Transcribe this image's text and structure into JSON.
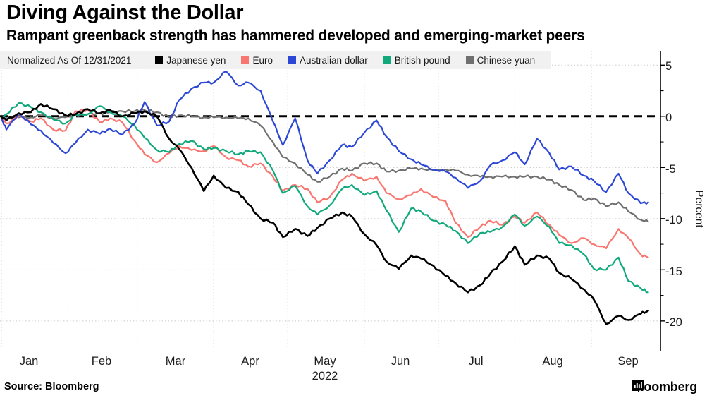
{
  "header": {
    "title": "Diving Against the Dollar",
    "subtitle": "Rampant greenback strength has hammered developed and emerging-market peers"
  },
  "legend": {
    "prefix": "Normalized As Of 12/31/2021",
    "background": "#f1f1f1",
    "items": [
      {
        "label": "Japanese yen",
        "color": "#000000"
      },
      {
        "label": "Euro",
        "color": "#f9756f"
      },
      {
        "label": "Australian dollar",
        "color": "#2c47d5"
      },
      {
        "label": "British pound",
        "color": "#10a97c"
      },
      {
        "label": "Chinese yuan",
        "color": "#6f6f6f"
      }
    ]
  },
  "chart_data": {
    "type": "line",
    "title": "Diving Against the Dollar",
    "xlabel": "",
    "ylabel": "Percent",
    "x_unit": "day_of_year_2022",
    "x_domain": [
      5,
      272
    ],
    "ylim": [
      -22.7,
      6.4
    ],
    "grid": true,
    "grid_color": "#c9c9c9",
    "zero_line": {
      "value": 0,
      "style": "dashed",
      "color": "#000000"
    },
    "y_ticks": [
      5,
      0,
      -5,
      -10,
      -15,
      -20
    ],
    "y_tick_labels": [
      "5",
      "0",
      "-5",
      "-10",
      "-15",
      "-20"
    ],
    "y_minor_ticks": [
      2.5,
      -2.5,
      -7.5,
      -12.5,
      -17.5
    ],
    "x_tick_labels": [
      "Jan",
      "Feb",
      "Mar",
      "Apr",
      "May",
      "Jun",
      "Jul",
      "Aug",
      "Sep"
    ],
    "x_label_centers_doy": [
      16,
      45.5,
      75.5,
      105.5,
      136,
      166.5,
      197,
      228,
      258.5
    ],
    "month_gridlines_doy": [
      5,
      32,
      60,
      91,
      121,
      152,
      182,
      213,
      244
    ],
    "x_year_label": "2022",
    "x": [
      5,
      7,
      12,
      17,
      21,
      26,
      31,
      35,
      40,
      45,
      49,
      54,
      59,
      63,
      68,
      73,
      77,
      82,
      87,
      91,
      96,
      101,
      105,
      110,
      115,
      119,
      124,
      129,
      133,
      138,
      143,
      147,
      152,
      157,
      161,
      166,
      171,
      175,
      180,
      185,
      189,
      194,
      199,
      203,
      208,
      213,
      217,
      222,
      227,
      231,
      236,
      241,
      245,
      250,
      255,
      259,
      264,
      267
    ],
    "series": [
      {
        "name": "Chinese yuan",
        "color": "#6f6f6f",
        "width": 2.2,
        "values": [
          0.0,
          -0.2,
          -0.1,
          -0.1,
          0.1,
          -0.2,
          -0.1,
          0.1,
          0.2,
          0.3,
          0.4,
          0.5,
          0.5,
          0.6,
          0.4,
          -0.1,
          0.1,
          0.0,
          -0.1,
          -0.1,
          -0.1,
          -0.2,
          -0.2,
          -0.9,
          -2.5,
          -4.0,
          -4.6,
          -5.7,
          -6.4,
          -5.9,
          -5.1,
          -5.3,
          -4.6,
          -4.6,
          -5.4,
          -5.3,
          -5.1,
          -5.1,
          -5.3,
          -5.2,
          -5.3,
          -5.7,
          -5.9,
          -5.9,
          -5.9,
          -5.9,
          -5.9,
          -5.9,
          -6.2,
          -6.7,
          -7.2,
          -8.2,
          -8.0,
          -8.8,
          -8.4,
          -9.3,
          -10.1,
          -10.3
        ]
      },
      {
        "name": "Euro",
        "color": "#f9756f",
        "width": 2.2,
        "values": [
          0.0,
          -0.7,
          0.0,
          -0.5,
          -0.2,
          -1.3,
          -1.4,
          0.5,
          0.6,
          -0.6,
          -0.2,
          -0.6,
          -2.4,
          -3.7,
          -4.5,
          -3.6,
          -2.9,
          -3.3,
          -3.4,
          -2.9,
          -4.0,
          -4.3,
          -4.9,
          -4.6,
          -5.9,
          -7.3,
          -6.7,
          -7.1,
          -8.4,
          -7.9,
          -6.2,
          -5.6,
          -6.3,
          -5.9,
          -7.5,
          -8.1,
          -7.7,
          -7.1,
          -7.9,
          -8.3,
          -10.4,
          -11.8,
          -10.8,
          -10.2,
          -10.6,
          -9.8,
          -10.4,
          -9.4,
          -10.6,
          -11.6,
          -12.4,
          -11.9,
          -12.5,
          -12.9,
          -11.0,
          -11.9,
          -13.5,
          -13.8
        ]
      },
      {
        "name": "British pound",
        "color": "#10a97c",
        "width": 2.2,
        "values": [
          -0.3,
          0.2,
          1.3,
          0.9,
          0.4,
          -0.3,
          -0.7,
          0.1,
          0.2,
          1.0,
          0.4,
          0.0,
          -0.9,
          -2.1,
          -3.3,
          -3.5,
          -2.7,
          -2.4,
          -3.2,
          -3.1,
          -3.4,
          -3.7,
          -3.4,
          -3.5,
          -5.3,
          -7.5,
          -6.8,
          -8.8,
          -9.6,
          -8.7,
          -7.1,
          -6.7,
          -7.7,
          -7.3,
          -9.2,
          -11.3,
          -9.0,
          -9.3,
          -10.2,
          -10.6,
          -11.2,
          -12.4,
          -11.4,
          -11.3,
          -10.8,
          -9.6,
          -10.7,
          -9.8,
          -10.8,
          -12.4,
          -12.6,
          -13.5,
          -14.9,
          -15.0,
          -13.8,
          -16.1,
          -16.8,
          -17.2
        ]
      },
      {
        "name": "Australian dollar",
        "color": "#2c47d5",
        "width": 2.2,
        "values": [
          -0.2,
          -1.3,
          0.3,
          -0.8,
          -1.4,
          -2.6,
          -3.6,
          -2.6,
          -1.3,
          -1.7,
          -1.2,
          -1.8,
          -0.7,
          1.4,
          -0.9,
          -0.5,
          1.6,
          2.7,
          3.3,
          3.3,
          4.4,
          3.0,
          3.3,
          2.5,
          -0.5,
          -2.8,
          -0.2,
          -4.3,
          -5.6,
          -4.3,
          -2.8,
          -3.0,
          -1.6,
          -0.4,
          -2.0,
          -3.4,
          -4.2,
          -4.7,
          -5.2,
          -5.4,
          -6.0,
          -7.0,
          -6.3,
          -4.8,
          -4.3,
          -3.5,
          -4.7,
          -2.2,
          -3.6,
          -5.2,
          -4.9,
          -5.8,
          -6.3,
          -7.4,
          -5.6,
          -7.5,
          -8.5,
          -8.4
        ]
      },
      {
        "name": "Japanese yen",
        "color": "#000000",
        "width": 2.6,
        "values": [
          0.0,
          -0.4,
          0.3,
          0.4,
          1.2,
          0.7,
          0.1,
          0.2,
          0.7,
          0.3,
          0.6,
          0.0,
          0.3,
          0.5,
          0.0,
          -2.2,
          -3.2,
          -5.0,
          -7.3,
          -5.8,
          -7.0,
          -7.4,
          -8.6,
          -10.0,
          -10.4,
          -11.8,
          -11.0,
          -11.7,
          -10.9,
          -10.0,
          -9.4,
          -9.8,
          -11.5,
          -12.6,
          -14.2,
          -14.9,
          -13.6,
          -13.9,
          -14.6,
          -15.6,
          -16.3,
          -17.2,
          -16.5,
          -15.4,
          -14.2,
          -12.7,
          -14.5,
          -13.6,
          -13.9,
          -15.3,
          -15.9,
          -16.9,
          -17.9,
          -20.3,
          -19.5,
          -19.9,
          -19.3,
          -19.0
        ]
      }
    ],
    "legend_position": "top"
  },
  "footer": {
    "source": "Source: Bloomberg",
    "brand": "Bloomberg"
  }
}
